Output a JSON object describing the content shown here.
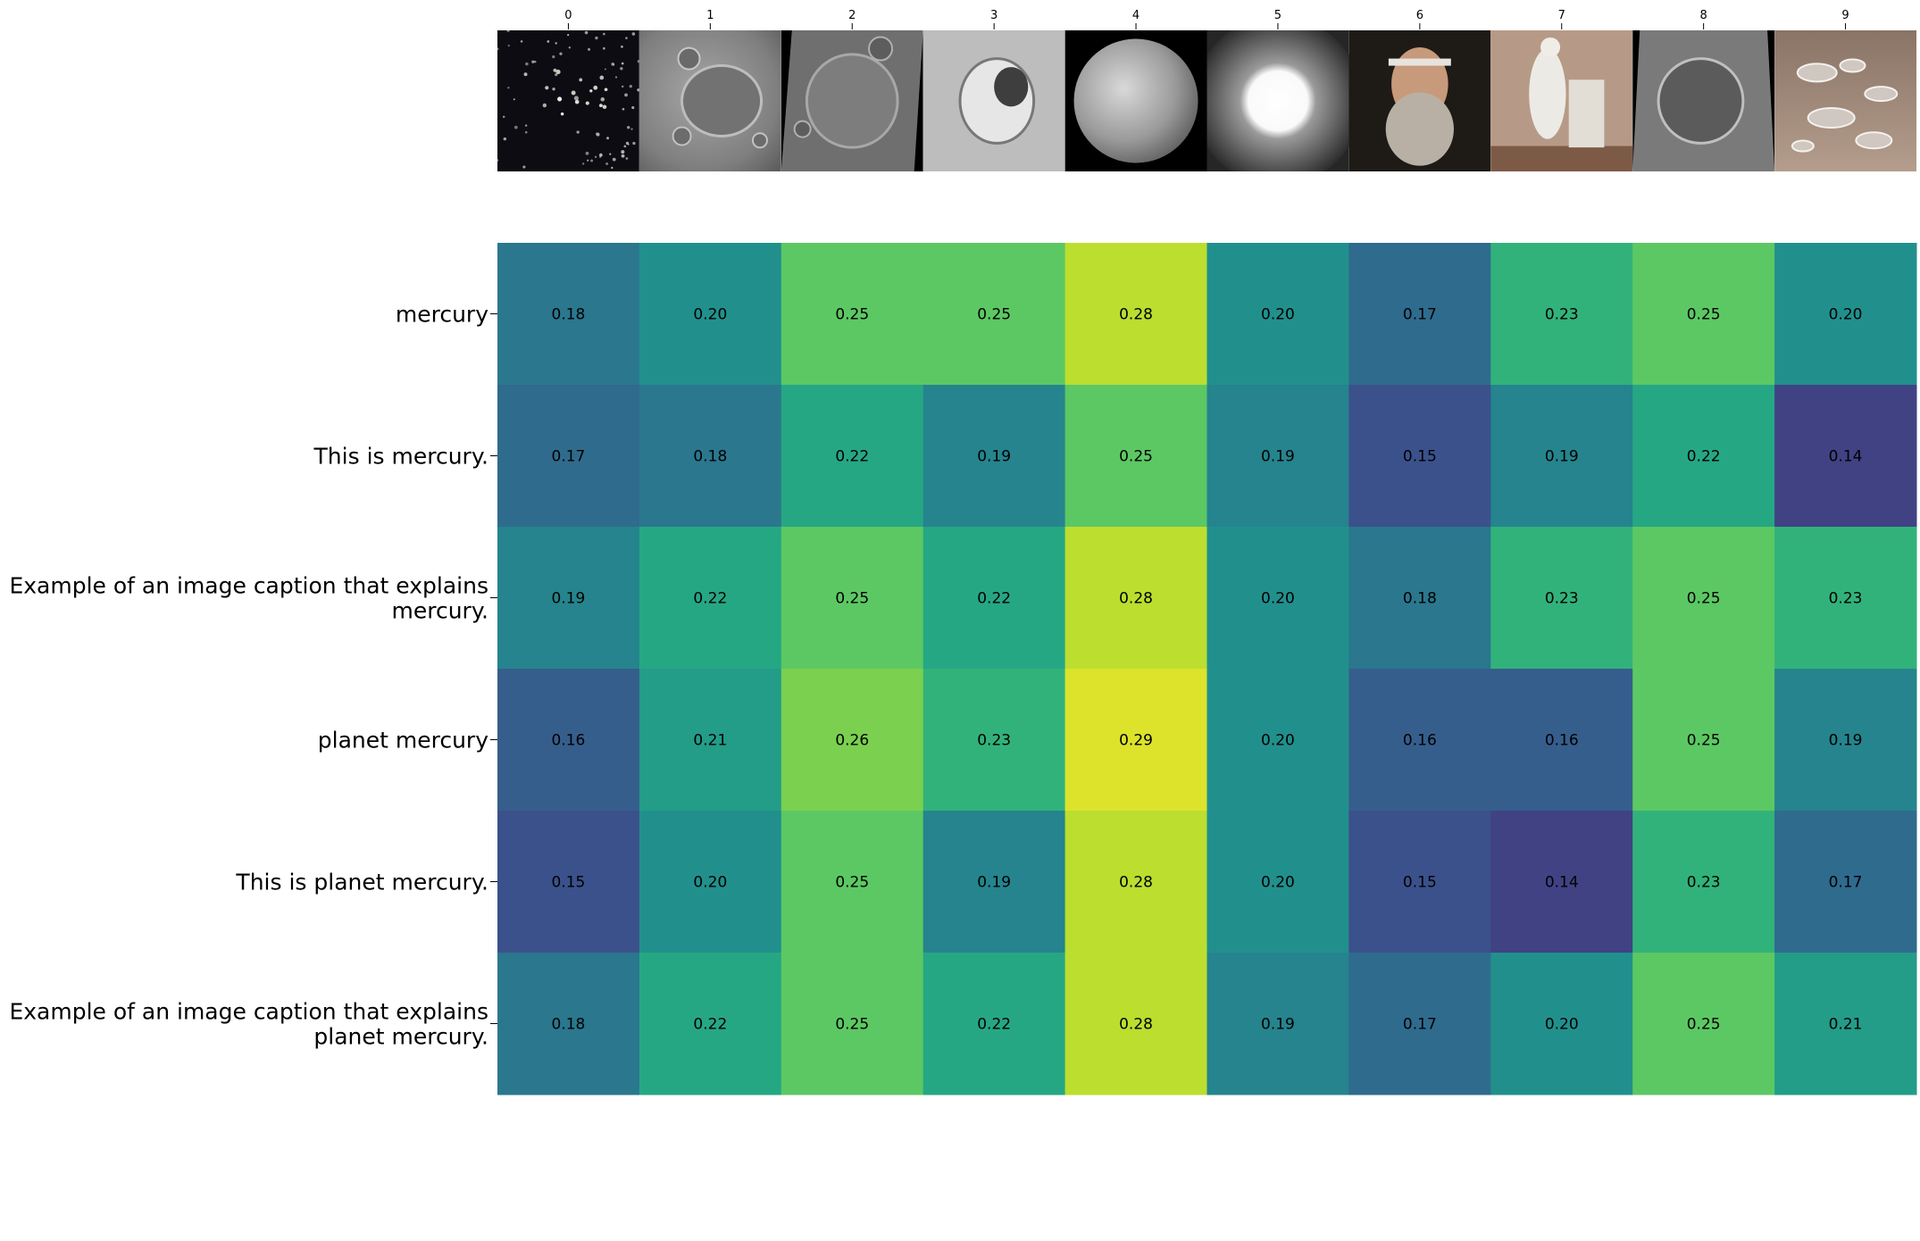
{
  "chart_data": {
    "type": "heatmap",
    "title": "",
    "xlabel": "",
    "ylabel": "",
    "x_ticks": [
      "0",
      "1",
      "2",
      "3",
      "4",
      "5",
      "6",
      "7",
      "8",
      "9"
    ],
    "image_thumbnails": [
      "star-cluster",
      "lunar-crater-pascal",
      "crater-surface",
      "crater-rock",
      "planet-mercury",
      "bright-sphere",
      "galileo-portrait",
      "marble-statue",
      "mercury-crater",
      "liquid-mercury-droplets"
    ],
    "rows": [
      [
        "mercury"
      ],
      [
        "This is mercury."
      ],
      [
        "Example of an image caption that explains",
        "mercury."
      ],
      [
        "planet mercury"
      ],
      [
        "This is planet mercury."
      ],
      [
        "Example of an image caption that explains",
        "planet mercury."
      ]
    ],
    "values": [
      [
        0.18,
        0.2,
        0.25,
        0.25,
        0.28,
        0.2,
        0.17,
        0.23,
        0.25,
        0.2
      ],
      [
        0.17,
        0.18,
        0.22,
        0.19,
        0.25,
        0.19,
        0.15,
        0.19,
        0.22,
        0.14
      ],
      [
        0.19,
        0.22,
        0.25,
        0.22,
        0.28,
        0.2,
        0.18,
        0.23,
        0.25,
        0.23
      ],
      [
        0.16,
        0.21,
        0.26,
        0.23,
        0.29,
        0.2,
        0.16,
        0.16,
        0.25,
        0.19
      ],
      [
        0.15,
        0.2,
        0.25,
        0.19,
        0.28,
        0.2,
        0.15,
        0.14,
        0.23,
        0.17
      ],
      [
        0.18,
        0.22,
        0.25,
        0.22,
        0.28,
        0.19,
        0.17,
        0.2,
        0.25,
        0.21
      ]
    ],
    "value_format": "0.00",
    "color_range": [
      0.1,
      0.3
    ],
    "colormap": "viridis",
    "grid": false,
    "legend": "none"
  }
}
